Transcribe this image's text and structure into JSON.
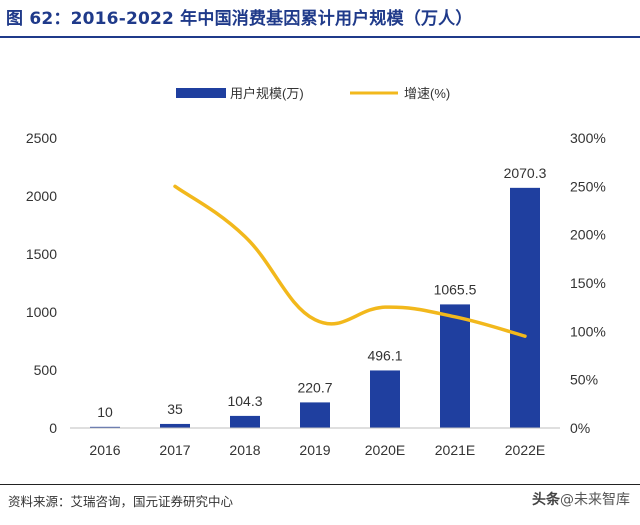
{
  "title": "图 62：2016-2022 年中国消费基因累计用户规模（万人）",
  "source": "资料来源：艾瑞咨询，国元证券研究中心",
  "watermark": {
    "platform": "头条",
    "handle": "@未来智库"
  },
  "chart_data": {
    "type": "bar",
    "categories": [
      "2016",
      "2017",
      "2018",
      "2019",
      "2020E",
      "2021E",
      "2022E"
    ],
    "series": [
      {
        "name": "用户规模(万)",
        "kind": "bar",
        "axis": "left",
        "color": "#1f3f9f",
        "values": [
          10,
          35,
          104.3,
          220.7,
          496.1,
          1065.5,
          2070.3
        ],
        "labels": [
          "10",
          "35",
          "104.3",
          "220.7",
          "496.1",
          "1065.5",
          "2070.3"
        ]
      },
      {
        "name": "增速(%)",
        "kind": "line",
        "axis": "right",
        "color": "#f2b81c",
        "values": [
          null,
          250,
          198,
          112,
          125,
          115,
          95
        ]
      }
    ],
    "y_left": {
      "min": 0,
      "max": 2500,
      "ticks": [
        0,
        500,
        1000,
        1500,
        2000,
        2500
      ],
      "tick_labels": [
        "0",
        "500",
        "1000",
        "1500",
        "2000",
        "2500"
      ]
    },
    "y_right": {
      "min": 0,
      "max": 300,
      "ticks": [
        0,
        50,
        100,
        150,
        200,
        250,
        300
      ],
      "tick_labels": [
        "0%",
        "50%",
        "100%",
        "150%",
        "200%",
        "250%",
        "300%"
      ]
    },
    "legend_position": "top-center",
    "grid": false
  }
}
